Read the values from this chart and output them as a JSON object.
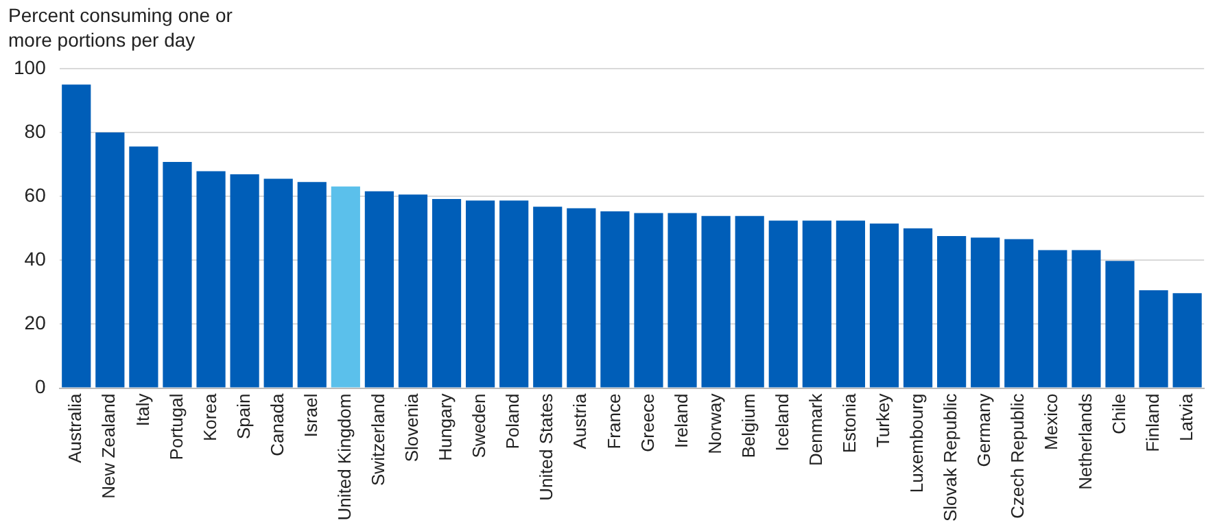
{
  "chart_data": {
    "type": "bar",
    "ylabel": "Percent consuming one or more portions per day",
    "categories": [
      "Australia",
      "New Zealand",
      "Italy",
      "Portugal",
      "Korea",
      "Spain",
      "Canada",
      "Israel",
      "United Kingdom",
      "Switzerland",
      "Slovenia",
      "Hungary",
      "Sweden",
      "Poland",
      "United States",
      "Austria",
      "France",
      "Greece",
      "Ireland",
      "Norway",
      "Belgium",
      "Iceland",
      "Denmark",
      "Estonia",
      "Turkey",
      "Luxembourg",
      "Slovak Republic",
      "Germany",
      "Czech Republic",
      "Mexico",
      "Netherlands",
      "Chile",
      "Finland",
      "Latvia"
    ],
    "values": [
      95,
      80,
      75.6,
      70.8,
      67.9,
      66.9,
      65.5,
      64.5,
      63.1,
      61.6,
      60.6,
      59.2,
      58.7,
      58.7,
      56.8,
      56.3,
      55.3,
      54.8,
      54.8,
      53.9,
      53.9,
      52.4,
      52.4,
      52.4,
      51.5,
      50,
      47.6,
      47.1,
      46.6,
      43.2,
      43.2,
      39.8,
      30.6,
      29.7
    ],
    "colors": [
      "#005eb8",
      "#005eb8",
      "#005eb8",
      "#005eb8",
      "#005eb8",
      "#005eb8",
      "#005eb8",
      "#005eb8",
      "#5bc0eb",
      "#005eb8",
      "#005eb8",
      "#005eb8",
      "#005eb8",
      "#005eb8",
      "#005eb8",
      "#005eb8",
      "#005eb8",
      "#005eb8",
      "#005eb8",
      "#005eb8",
      "#005eb8",
      "#005eb8",
      "#005eb8",
      "#005eb8",
      "#005eb8",
      "#005eb8",
      "#005eb8",
      "#005eb8",
      "#005eb8",
      "#005eb8",
      "#005eb8",
      "#005eb8",
      "#005eb8",
      "#005eb8"
    ],
    "ylim": [
      0,
      100
    ],
    "yticks": [
      0,
      20,
      40,
      60,
      80,
      100
    ],
    "grid": "y",
    "legend": false
  }
}
